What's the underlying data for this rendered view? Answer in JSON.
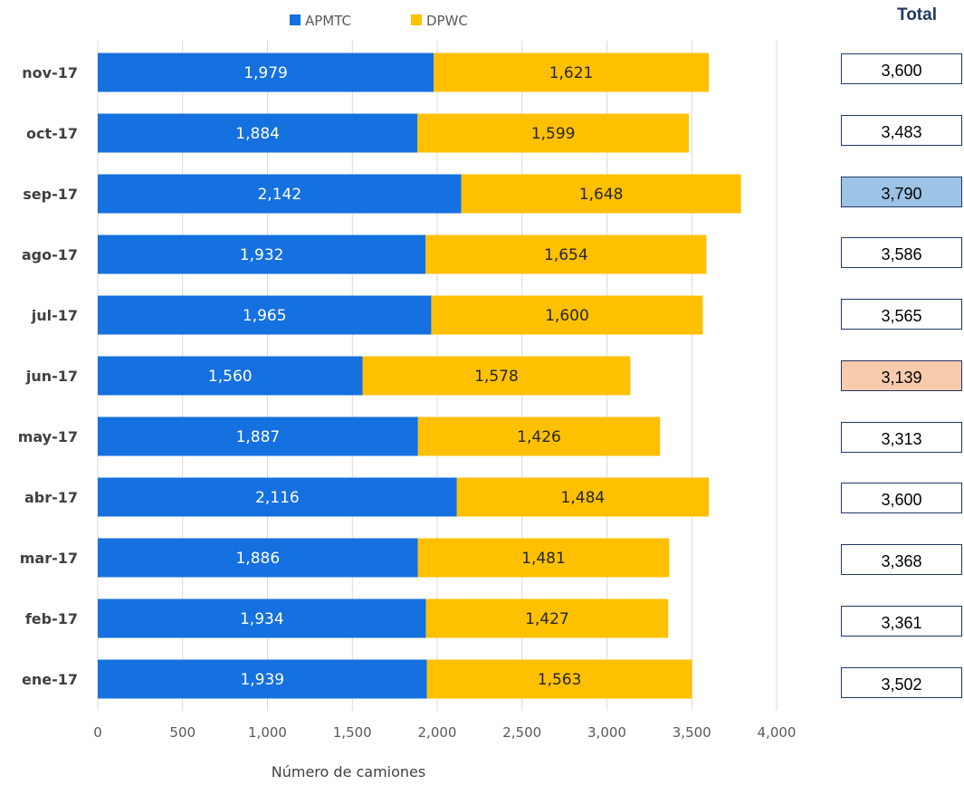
{
  "chart_data": {
    "type": "bar",
    "orientation": "horizontal",
    "stacked": true,
    "categories": [
      "nov-17",
      "oct-17",
      "sep-17",
      "ago-17",
      "jul-17",
      "jun-17",
      "may-17",
      "abr-17",
      "mar-17",
      "feb-17",
      "ene-17"
    ],
    "series": [
      {
        "name": "APMTC",
        "color": "#1570e0",
        "values": [
          1979,
          1884,
          2142,
          1932,
          1965,
          1560,
          1887,
          2116,
          1886,
          1934,
          1939
        ],
        "labels": [
          "1,979",
          "1,884",
          "2,142",
          "1,932",
          "1,965",
          "1,560",
          "1,887",
          "2,116",
          "1,886",
          "1,934",
          "1,939"
        ]
      },
      {
        "name": "DPWC",
        "color": "#ffc000",
        "values": [
          1621,
          1599,
          1648,
          1654,
          1600,
          1578,
          1426,
          1484,
          1481,
          1427,
          1563
        ],
        "labels": [
          "1,621",
          "1,599",
          "1,648",
          "1,654",
          "1,600",
          "1,578",
          "1,426",
          "1,484",
          "1,481",
          "1,427",
          "1,563"
        ]
      }
    ],
    "xlabel": "Número de camiones",
    "ylabel": "",
    "xlim": [
      0,
      4000
    ],
    "x_ticks": [
      0,
      500,
      1000,
      1500,
      2000,
      2500,
      3000,
      3500,
      4000
    ],
    "x_tick_labels": [
      "0",
      "500",
      "1,000",
      "1,500",
      "2,000",
      "2,500",
      "3,000",
      "3,500",
      "4,000"
    ],
    "grid": "vertical",
    "legend": "top"
  },
  "totals": {
    "header": "Total",
    "items": [
      {
        "label": "3,600",
        "highlight": null
      },
      {
        "label": "3,483",
        "highlight": null
      },
      {
        "label": "3,790",
        "highlight": "#9dc3e6"
      },
      {
        "label": "3,586",
        "highlight": null
      },
      {
        "label": "3,565",
        "highlight": null
      },
      {
        "label": "3,139",
        "highlight": "#f8cbad"
      },
      {
        "label": "3,313",
        "highlight": null
      },
      {
        "label": "3,600",
        "highlight": null
      },
      {
        "label": "3,368",
        "highlight": null
      },
      {
        "label": "3,361",
        "highlight": null
      },
      {
        "label": "3,502",
        "highlight": null
      }
    ]
  }
}
